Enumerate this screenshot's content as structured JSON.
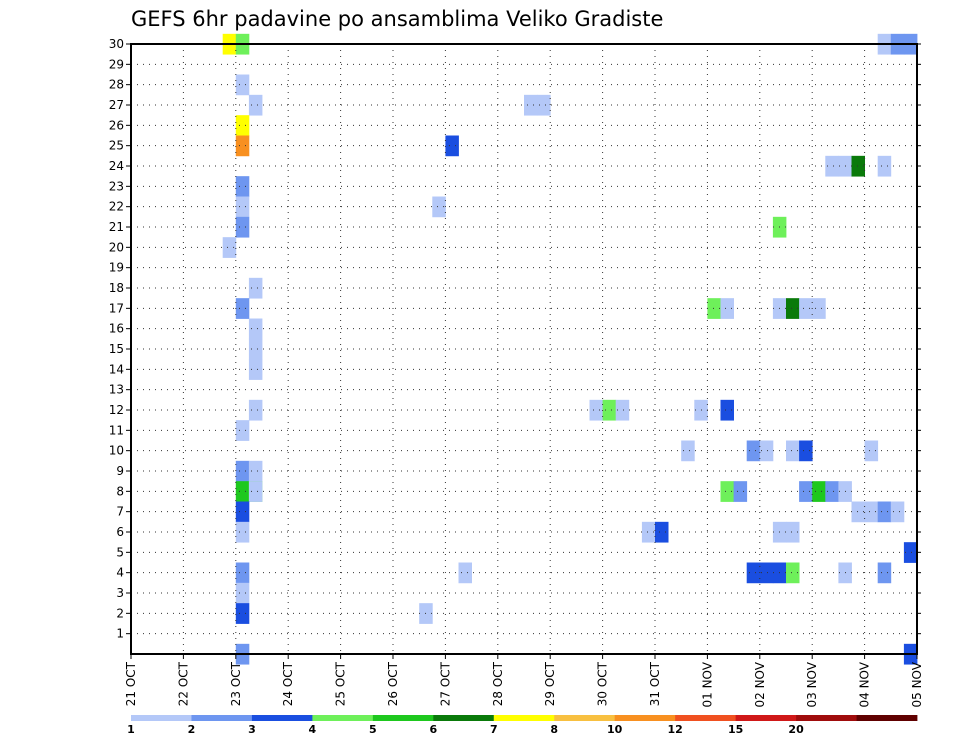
{
  "chart_data": {
    "type": "heatmap",
    "title": "GEFS 6hr padavine po ansamblima Veliko Gradiste",
    "x_labels": [
      "21 OCT",
      "22 OCT",
      "23 OCT",
      "24 OCT",
      "25 OCT",
      "26 OCT",
      "27 OCT",
      "28 OCT",
      "29 OCT",
      "30 OCT",
      "31 OCT",
      "01 NOV",
      "02 NOV",
      "03 NOV",
      "04 NOV",
      "05 NOV"
    ],
    "y_labels": [
      "1",
      "2",
      "3",
      "4",
      "5",
      "6",
      "7",
      "8",
      "9",
      "10",
      "11",
      "12",
      "13",
      "14",
      "15",
      "16",
      "17",
      "18",
      "19",
      "20",
      "21",
      "22",
      "23",
      "24",
      "25",
      "26",
      "27",
      "28",
      "29",
      "30"
    ],
    "x_range_days": [
      0,
      15
    ],
    "y_range": [
      0,
      30
    ],
    "grid": true,
    "colorbar": {
      "placement": "bottom",
      "labels": [
        "1",
        "2",
        "3",
        "4",
        "5",
        "6",
        "7",
        "8",
        "10",
        "12",
        "15",
        "20"
      ],
      "colors": [
        "#b4c8f8",
        "#6e96f0",
        "#1a4ee0",
        "#6ef05a",
        "#1ec81e",
        "#0a7a0a",
        "#ffff00",
        "#f8c040",
        "#f89020",
        "#f05020",
        "#d01818",
        "#a00c0c",
        "#600000"
      ]
    },
    "cells_note": "each cell: [day offset from 21 OCT 00Z, ensemble member, colorbar level index]",
    "cells": [
      [
        1.75,
        30,
        6
      ],
      [
        2.0,
        30,
        3
      ],
      [
        2.0,
        28,
        0
      ],
      [
        2.25,
        27,
        0
      ],
      [
        2.0,
        26,
        6
      ],
      [
        2.0,
        25,
        8
      ],
      [
        2.0,
        23,
        1
      ],
      [
        2.0,
        22,
        0
      ],
      [
        2.0,
        21,
        1
      ],
      [
        1.75,
        20,
        0
      ],
      [
        2.25,
        18,
        0
      ],
      [
        2.0,
        17,
        1
      ],
      [
        2.25,
        16,
        0
      ],
      [
        2.25,
        15,
        0
      ],
      [
        2.25,
        14,
        0
      ],
      [
        2.25,
        12,
        0
      ],
      [
        2.0,
        11,
        0
      ],
      [
        2.0,
        9,
        1
      ],
      [
        2.25,
        9,
        0
      ],
      [
        2.0,
        8,
        4
      ],
      [
        2.25,
        8,
        3
      ],
      [
        2.25,
        8,
        0
      ],
      [
        2.0,
        7,
        2
      ],
      [
        2.0,
        6,
        0
      ],
      [
        2.0,
        4,
        1
      ],
      [
        2.0,
        3,
        0
      ],
      [
        2.0,
        2,
        2
      ],
      [
        2.0,
        0,
        1
      ],
      [
        7.5,
        27,
        0
      ],
      [
        7.75,
        27,
        0
      ],
      [
        6.0,
        25,
        2
      ],
      [
        5.75,
        22,
        0
      ],
      [
        6.25,
        4,
        0
      ],
      [
        5.5,
        2,
        0
      ],
      [
        8.75,
        12,
        0
      ],
      [
        9.0,
        12,
        3
      ],
      [
        9.25,
        12,
        0
      ],
      [
        9.75,
        6,
        0
      ],
      [
        10.0,
        6,
        2
      ],
      [
        10.5,
        10,
        0
      ],
      [
        10.75,
        12,
        0
      ],
      [
        11.0,
        17,
        3
      ],
      [
        11.25,
        17,
        0
      ],
      [
        11.25,
        12,
        2
      ],
      [
        11.25,
        8,
        3
      ],
      [
        11.5,
        8,
        1
      ],
      [
        11.75,
        10,
        1
      ],
      [
        12.0,
        10,
        0
      ],
      [
        11.75,
        4,
        2
      ],
      [
        12.0,
        4,
        2
      ],
      [
        12.25,
        4,
        2
      ],
      [
        12.5,
        4,
        3
      ],
      [
        12.25,
        21,
        3
      ],
      [
        12.25,
        17,
        0
      ],
      [
        12.5,
        17,
        5
      ],
      [
        12.75,
        17,
        0
      ],
      [
        13.0,
        17,
        0
      ],
      [
        12.5,
        10,
        0
      ],
      [
        12.75,
        10,
        2
      ],
      [
        12.25,
        6,
        0
      ],
      [
        12.5,
        6,
        0
      ],
      [
        12.75,
        8,
        1
      ],
      [
        13.0,
        8,
        4
      ],
      [
        13.25,
        8,
        1
      ],
      [
        13.5,
        8,
        0
      ],
      [
        13.25,
        24,
        0
      ],
      [
        13.5,
        24,
        0
      ],
      [
        13.75,
        24,
        5
      ],
      [
        14.25,
        24,
        0
      ],
      [
        14.0,
        10,
        0
      ],
      [
        13.5,
        4,
        0
      ],
      [
        14.25,
        4,
        1
      ],
      [
        13.75,
        7,
        0
      ],
      [
        14.0,
        7,
        0
      ],
      [
        14.25,
        7,
        1
      ],
      [
        14.5,
        7,
        0
      ],
      [
        14.25,
        30,
        0
      ],
      [
        14.5,
        30,
        1
      ],
      [
        14.75,
        30,
        1
      ],
      [
        14.75,
        5,
        2
      ],
      [
        14.75,
        0,
        2
      ]
    ]
  }
}
